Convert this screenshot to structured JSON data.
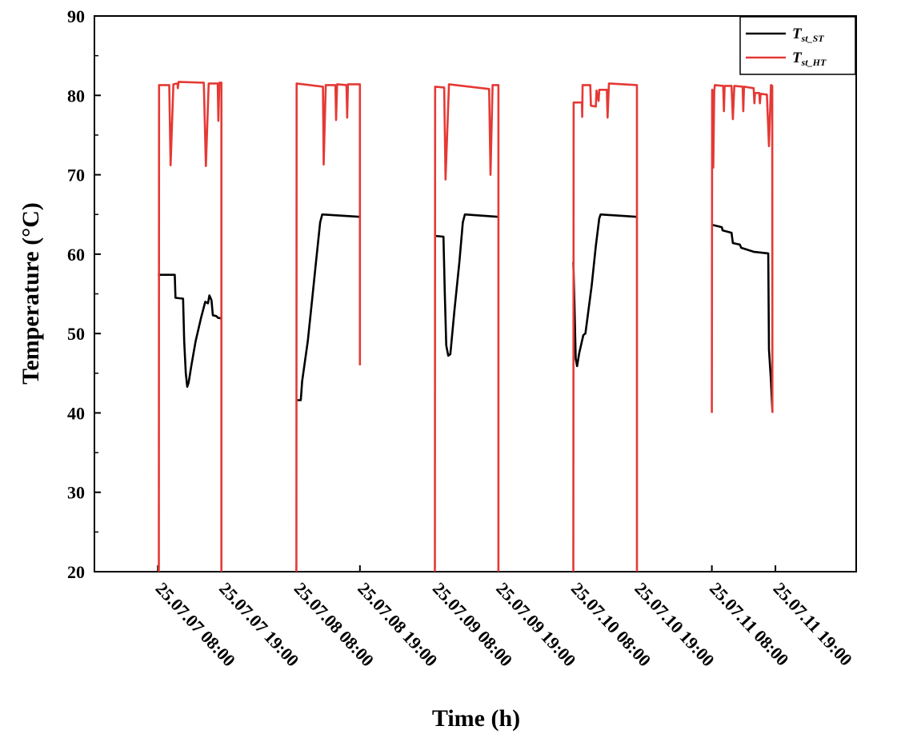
{
  "chart_data": {
    "type": "line",
    "title": "",
    "xlabel": "Time (h)",
    "ylabel": "Temperature (°C)",
    "ylim": [
      20,
      90
    ],
    "yticks": [
      20,
      30,
      40,
      50,
      60,
      70,
      80,
      90
    ],
    "xlim": [
      7.0,
      12.5
    ],
    "xticks": [
      {
        "x": 7.458,
        "label": "25.07.07 08:00"
      },
      {
        "x": 7.917,
        "label": "25.07.07 19:00"
      },
      {
        "x": 8.458,
        "label": "25.07.08 08:00"
      },
      {
        "x": 8.917,
        "label": "25.07.08 19:00"
      },
      {
        "x": 9.458,
        "label": "25.07.09 08:00"
      },
      {
        "x": 9.917,
        "label": "25.07.09 19:00"
      },
      {
        "x": 10.458,
        "label": "25.07.10 08:00"
      },
      {
        "x": 10.917,
        "label": "25.07.10 19:00"
      },
      {
        "x": 11.458,
        "label": "25.07.11 08:00"
      },
      {
        "x": 11.917,
        "label": "25.07.11 19:00"
      }
    ],
    "legend_position": "top-right",
    "series": [
      {
        "name": "T_st_ST",
        "legend_main": "T",
        "legend_sub": "st_ST",
        "color": "#000000",
        "segments": [
          [
            [
              7.458,
              57.4
            ],
            [
              7.58,
              57.4
            ],
            [
              7.585,
              54.5
            ],
            [
              7.64,
              54.4
            ],
            [
              7.648,
              49
            ],
            [
              7.66,
              45
            ],
            [
              7.67,
              43.3
            ],
            [
              7.68,
              43.8
            ],
            [
              7.7,
              46
            ],
            [
              7.73,
              49
            ],
            [
              7.77,
              52
            ],
            [
              7.8,
              54
            ],
            [
              7.82,
              53.8
            ],
            [
              7.83,
              54.8
            ],
            [
              7.845,
              54.2
            ],
            [
              7.855,
              52.3
            ],
            [
              7.88,
              52.2
            ],
            [
              7.89,
              52
            ],
            [
              7.917,
              51.9
            ]
          ],
          [
            [
              8.458,
              41.6
            ],
            [
              8.49,
              41.6
            ],
            [
              8.5,
              44
            ],
            [
              8.54,
              49
            ],
            [
              8.57,
              54
            ],
            [
              8.6,
              59
            ],
            [
              8.63,
              64
            ],
            [
              8.645,
              65
            ],
            [
              8.917,
              64.7
            ]
          ],
          [
            [
              9.458,
              62.3
            ],
            [
              9.52,
              62.2
            ],
            [
              9.53,
              55
            ],
            [
              9.54,
              48.5
            ],
            [
              9.555,
              47.2
            ],
            [
              9.57,
              47.4
            ],
            [
              9.6,
              53
            ],
            [
              9.635,
              59
            ],
            [
              9.66,
              64
            ],
            [
              9.675,
              65
            ],
            [
              9.917,
              64.7
            ]
          ],
          [
            [
              10.458,
              59
            ],
            [
              10.465,
              54
            ],
            [
              10.475,
              46.8
            ],
            [
              10.485,
              45.9
            ],
            [
              10.5,
              47.5
            ],
            [
              10.53,
              49.8
            ],
            [
              10.545,
              50
            ],
            [
              10.56,
              52
            ],
            [
              10.59,
              56
            ],
            [
              10.62,
              61
            ],
            [
              10.645,
              64.5
            ],
            [
              10.655,
              65
            ],
            [
              10.917,
              64.7
            ]
          ],
          [
            [
              11.458,
              63.7
            ],
            [
              11.53,
              63.4
            ],
            [
              11.535,
              63
            ],
            [
              11.6,
              62.7
            ],
            [
              11.61,
              61.4
            ],
            [
              11.66,
              61.2
            ],
            [
              11.67,
              60.8
            ],
            [
              11.76,
              60.3
            ],
            [
              11.865,
              60.1
            ],
            [
              11.87,
              48
            ],
            [
              11.885,
              44
            ],
            [
              11.895,
              40.2
            ]
          ]
        ]
      },
      {
        "name": "T_st_HT",
        "legend_main": "T",
        "legend_sub": "st_HT",
        "color": "#e53935",
        "segments": [
          [
            [
              7.465,
              20
            ],
            [
              7.467,
              81.3
            ],
            [
              7.54,
              81.3
            ],
            [
              7.55,
              71.2
            ],
            [
              7.57,
              81.4
            ],
            [
              7.6,
              81.5
            ],
            [
              7.602,
              80.9
            ],
            [
              7.608,
              81.7
            ],
            [
              7.79,
              81.6
            ],
            [
              7.805,
              71.1
            ],
            [
              7.825,
              81.5
            ],
            [
              7.89,
              81.5
            ],
            [
              7.895,
              76.8
            ],
            [
              7.902,
              81.6
            ],
            [
              7.917,
              81.6
            ],
            [
              7.917,
              20
            ]
          ],
          [
            [
              8.458,
              20
            ],
            [
              8.46,
              81.5
            ],
            [
              8.65,
              81.1
            ],
            [
              8.655,
              71.3
            ],
            [
              8.67,
              81.3
            ],
            [
              8.74,
              81.3
            ],
            [
              8.745,
              76.9
            ],
            [
              8.752,
              81.4
            ],
            [
              8.82,
              81.3
            ],
            [
              8.825,
              77.2
            ],
            [
              8.83,
              81.4
            ],
            [
              8.917,
              81.4
            ],
            [
              8.917,
              46
            ]
          ],
          [
            [
              9.458,
              20
            ],
            [
              9.46,
              81.1
            ],
            [
              9.525,
              81
            ],
            [
              9.535,
              69.4
            ],
            [
              9.56,
              81.4
            ],
            [
              9.85,
              80.8
            ],
            [
              9.86,
              70
            ],
            [
              9.875,
              81.3
            ],
            [
              9.917,
              81.3
            ],
            [
              9.917,
              20
            ]
          ],
          [
            [
              10.458,
              20
            ],
            [
              10.46,
              79.1
            ],
            [
              10.52,
              79.1
            ],
            [
              10.522,
              77.3
            ],
            [
              10.525,
              81.3
            ],
            [
              10.58,
              81.3
            ],
            [
              10.585,
              78.7
            ],
            [
              10.62,
              78.6
            ],
            [
              10.625,
              80.6
            ],
            [
              10.64,
              79.3
            ],
            [
              10.645,
              80.7
            ],
            [
              10.7,
              80.7
            ],
            [
              10.705,
              77.2
            ],
            [
              10.715,
              81.5
            ],
            [
              10.917,
              81.3
            ],
            [
              10.917,
              20
            ]
          ],
          [
            [
              11.458,
              40
            ],
            [
              11.46,
              80.7
            ],
            [
              11.468,
              70.9
            ],
            [
              11.475,
              80.6
            ],
            [
              11.48,
              81.3
            ],
            [
              11.54,
              81.2
            ],
            [
              11.545,
              78
            ],
            [
              11.55,
              81.2
            ],
            [
              11.6,
              81.2
            ],
            [
              11.61,
              77
            ],
            [
              11.62,
              81.2
            ],
            [
              11.68,
              81.1
            ],
            [
              11.685,
              78
            ],
            [
              11.69,
              81.1
            ],
            [
              11.76,
              80.9
            ],
            [
              11.765,
              79
            ],
            [
              11.77,
              80.3
            ],
            [
              11.8,
              80.3
            ],
            [
              11.805,
              79
            ],
            [
              11.81,
              80.2
            ],
            [
              11.855,
              80.1
            ],
            [
              11.87,
              73.6
            ],
            [
              11.885,
              81.3
            ],
            [
              11.894,
              81.2
            ],
            [
              11.895,
              40
            ]
          ]
        ]
      }
    ]
  }
}
